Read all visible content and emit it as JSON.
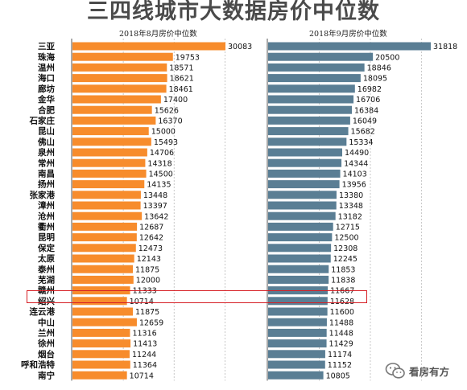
{
  "title": "三四线城市大数据房价中位数",
  "watermark": {
    "text": "看房有方",
    "icon": "wechat-icon"
  },
  "highlight_city": "赣州",
  "colors": {
    "aug": "#f78c2c",
    "sep": "#5a7e94",
    "highlight": "#d61e24"
  },
  "chart_data": [
    {
      "type": "bar",
      "orientation": "horizontal",
      "title": "2018年8月房价中位数",
      "categories": [
        "三亚",
        "珠海",
        "温州",
        "海口",
        "廊坊",
        "金华",
        "合肥",
        "石家庄",
        "昆山",
        "佛山",
        "泉州",
        "常州",
        "南昌",
        "扬州",
        "张家港",
        "漳州",
        "沧州",
        "衢州",
        "昆明",
        "保定",
        "太原",
        "泰州",
        "芜湖",
        "赣州",
        "绍兴",
        "连云港",
        "中山",
        "兰州",
        "徐州",
        "烟台",
        "呼和浩特",
        "南宁"
      ],
      "values": [
        30083,
        19753,
        18571,
        18621,
        18461,
        17400,
        15626,
        16370,
        15000,
        15493,
        14706,
        14318,
        14500,
        14135,
        13448,
        13397,
        13642,
        12687,
        12642,
        12473,
        12143,
        11875,
        12000,
        11333,
        10714,
        11875,
        12659,
        11316,
        11413,
        11244,
        11364,
        10714
      ],
      "color": "#f78c2c"
    },
    {
      "type": "bar",
      "orientation": "horizontal",
      "title": "2018年9月房价中位数",
      "categories": [
        "三亚",
        "珠海",
        "温州",
        "海口",
        "廊坊",
        "金华",
        "合肥",
        "石家庄",
        "昆山",
        "佛山",
        "泉州",
        "常州",
        "南昌",
        "扬州",
        "张家港",
        "漳州",
        "沧州",
        "衢州",
        "昆明",
        "保定",
        "太原",
        "泰州",
        "芜湖",
        "赣州",
        "绍兴",
        "连云港",
        "中山",
        "兰州",
        "徐州",
        "烟台",
        "呼和浩特",
        "南宁"
      ],
      "values": [
        31818,
        20500,
        18846,
        18095,
        16982,
        16706,
        16384,
        16049,
        15682,
        15334,
        14490,
        14344,
        14103,
        13956,
        13380,
        13348,
        13182,
        12715,
        12500,
        12308,
        12245,
        11853,
        11838,
        11667,
        11628,
        11600,
        11488,
        11448,
        11429,
        11174,
        11152,
        10805
      ],
      "color": "#5a7e94"
    }
  ]
}
